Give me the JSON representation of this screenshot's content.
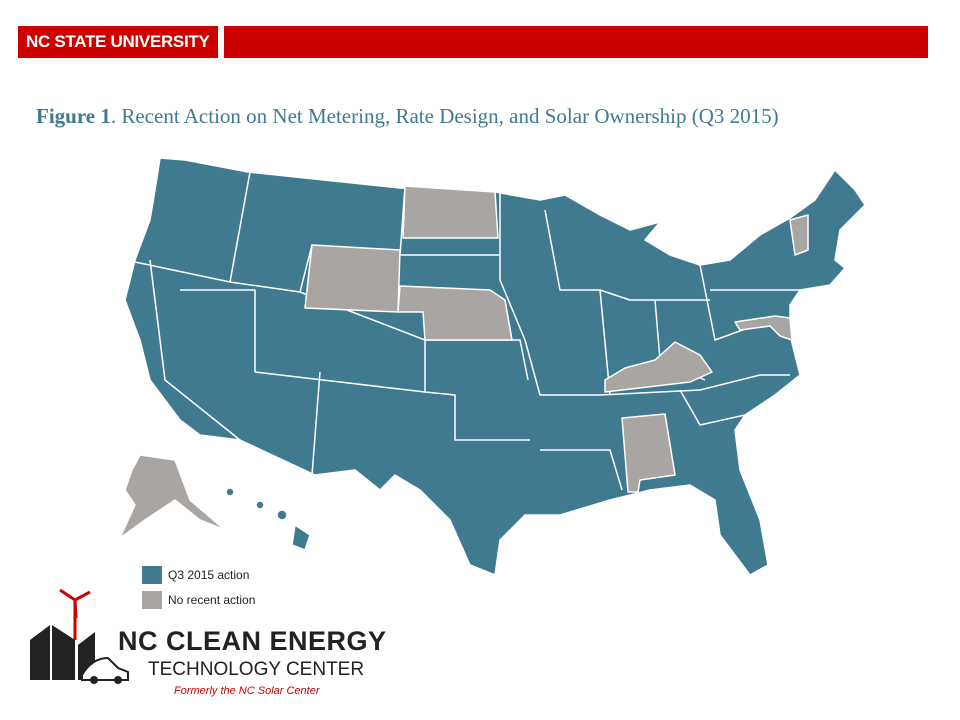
{
  "header": {
    "brand": "NC STATE UNIVERSITY"
  },
  "figure": {
    "label": "Figure 1",
    "title": ". Recent Action on Net Metering, Rate Design, and Solar Ownership (Q3 2015)"
  },
  "legend": [
    {
      "label": "Q3 2015 action",
      "color": "#3f7a90"
    },
    {
      "label": "No recent action",
      "color": "#a8a5a3"
    }
  ],
  "logo": {
    "line1": "NC CLEAN ENERGY",
    "line2": "TECHNOLOGY CENTER",
    "tagline": "Formerly the NC Solar Center"
  }
}
